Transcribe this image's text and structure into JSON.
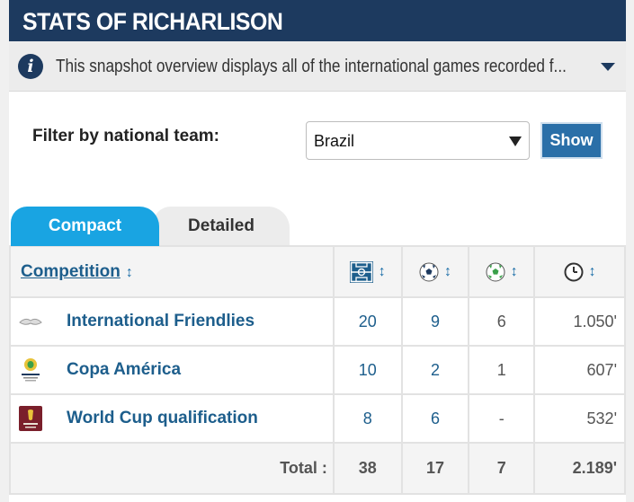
{
  "header": {
    "title": "STATS OF RICHARLISON"
  },
  "info": {
    "text": "This snapshot overview displays all of the international games recorded f..."
  },
  "filter": {
    "label": "Filter by national team:",
    "selected": "Brazil",
    "button": "Show"
  },
  "tabs": {
    "compact": "Compact",
    "detailed": "Detailed"
  },
  "table": {
    "competition_header": "Competition",
    "sort_glyph": "↕",
    "column_icons": [
      "appearances-pitch-icon",
      "goals-ball-icon",
      "assists-ball-icon",
      "minutes-clock-icon"
    ],
    "rows": [
      {
        "logo": "international-friendlies-logo",
        "competition": "International Friendlies",
        "appearances": "20",
        "goals": "9",
        "assists": "6",
        "minutes": "1.050'"
      },
      {
        "logo": "copa-america-logo",
        "competition": "Copa América",
        "appearances": "10",
        "goals": "2",
        "assists": "1",
        "minutes": "607'"
      },
      {
        "logo": "world-cup-qualification-logo",
        "competition": "World Cup qualification",
        "appearances": "8",
        "goals": "6",
        "assists": "-",
        "minutes": "532'"
      }
    ],
    "totals": {
      "label": "Total :",
      "appearances": "38",
      "goals": "17",
      "assists": "7",
      "minutes": "2.189'"
    }
  },
  "colors": {
    "header_bg": "#1d3a5f",
    "tab_active": "#19a4e2",
    "link": "#1d5e8c",
    "button": "#2a6fa8"
  }
}
